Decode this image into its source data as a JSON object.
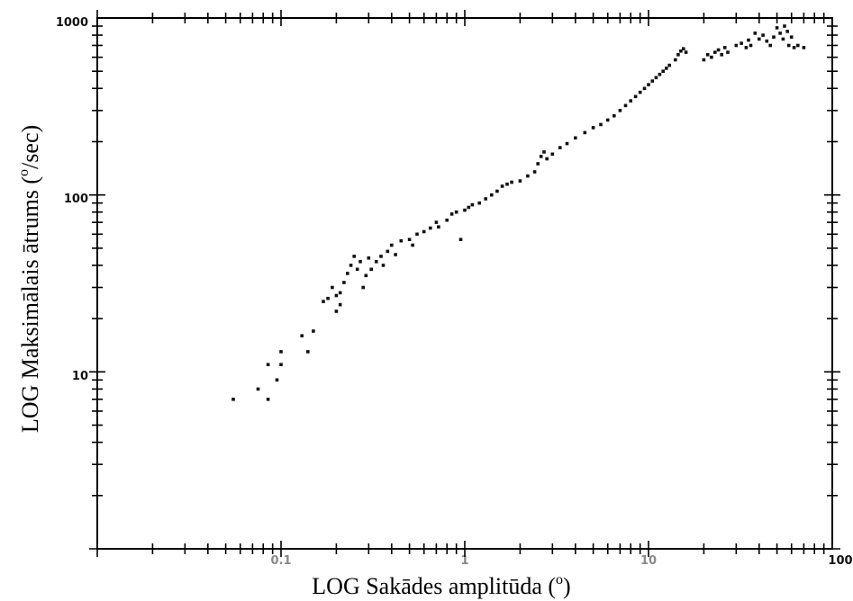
{
  "chart_data": {
    "type": "scatter",
    "title": "",
    "xlabel": "LOG Sakādes amplitūda (",
    "xlabel_sup": "o",
    "xlabel_end": ")",
    "ylabel": "LOG Maksimālais ātrums (",
    "ylabel_sup": "o",
    "ylabel_end": "/sec)",
    "x_scale": "log",
    "y_scale": "log",
    "xlim": [
      0.01,
      100
    ],
    "ylim": [
      1,
      1000
    ],
    "x_tick_labels": [
      "0.1",
      "1",
      "10",
      "100"
    ],
    "y_tick_labels": [
      "1000",
      "100",
      "10"
    ],
    "grid": false,
    "marker_color": "#111111",
    "points": [
      [
        0.055,
        7
      ],
      [
        0.075,
        8
      ],
      [
        0.085,
        11
      ],
      [
        0.085,
        7
      ],
      [
        0.095,
        9
      ],
      [
        0.1,
        11
      ],
      [
        0.1,
        13
      ],
      [
        0.13,
        16
      ],
      [
        0.14,
        13
      ],
      [
        0.15,
        17
      ],
      [
        0.17,
        25
      ],
      [
        0.18,
        26
      ],
      [
        0.19,
        30
      ],
      [
        0.2,
        22
      ],
      [
        0.2,
        27
      ],
      [
        0.21,
        28
      ],
      [
        0.21,
        24
      ],
      [
        0.22,
        32
      ],
      [
        0.23,
        36
      ],
      [
        0.24,
        40
      ],
      [
        0.25,
        45
      ],
      [
        0.26,
        38
      ],
      [
        0.27,
        42
      ],
      [
        0.28,
        30
      ],
      [
        0.29,
        35
      ],
      [
        0.3,
        44
      ],
      [
        0.31,
        38
      ],
      [
        0.33,
        42
      ],
      [
        0.35,
        45
      ],
      [
        0.36,
        40
      ],
      [
        0.38,
        48
      ],
      [
        0.4,
        52
      ],
      [
        0.42,
        46
      ],
      [
        0.45,
        55
      ],
      [
        0.5,
        56
      ],
      [
        0.52,
        52
      ],
      [
        0.55,
        60
      ],
      [
        0.6,
        62
      ],
      [
        0.65,
        65
      ],
      [
        0.7,
        70
      ],
      [
        0.72,
        66
      ],
      [
        0.8,
        72
      ],
      [
        0.85,
        78
      ],
      [
        0.9,
        80
      ],
      [
        0.95,
        56
      ],
      [
        1.0,
        82
      ],
      [
        1.05,
        85
      ],
      [
        1.1,
        88
      ],
      [
        1.2,
        90
      ],
      [
        1.3,
        95
      ],
      [
        1.4,
        100
      ],
      [
        1.5,
        105
      ],
      [
        1.6,
        112
      ],
      [
        1.7,
        115
      ],
      [
        1.8,
        118
      ],
      [
        2.0,
        120
      ],
      [
        2.2,
        128
      ],
      [
        2.4,
        135
      ],
      [
        2.5,
        150
      ],
      [
        2.6,
        165
      ],
      [
        2.7,
        175
      ],
      [
        2.8,
        160
      ],
      [
        3.0,
        170
      ],
      [
        3.3,
        185
      ],
      [
        3.6,
        195
      ],
      [
        4.0,
        210
      ],
      [
        4.5,
        225
      ],
      [
        5.0,
        240
      ],
      [
        5.5,
        250
      ],
      [
        6.0,
        265
      ],
      [
        6.5,
        280
      ],
      [
        7.0,
        300
      ],
      [
        7.5,
        320
      ],
      [
        8.0,
        340
      ],
      [
        8.5,
        360
      ],
      [
        9.0,
        380
      ],
      [
        9.5,
        400
      ],
      [
        10,
        420
      ],
      [
        10.5,
        440
      ],
      [
        11,
        460
      ],
      [
        11.5,
        480
      ],
      [
        12,
        500
      ],
      [
        12.5,
        520
      ],
      [
        13,
        540
      ],
      [
        14,
        580
      ],
      [
        14.5,
        620
      ],
      [
        15,
        650
      ],
      [
        15.5,
        670
      ],
      [
        16,
        640
      ],
      [
        20,
        580
      ],
      [
        21,
        620
      ],
      [
        22,
        600
      ],
      [
        23,
        640
      ],
      [
        24,
        660
      ],
      [
        25,
        620
      ],
      [
        26,
        680
      ],
      [
        27,
        640
      ],
      [
        30,
        700
      ],
      [
        32,
        720
      ],
      [
        34,
        680
      ],
      [
        35,
        750
      ],
      [
        36,
        700
      ],
      [
        38,
        820
      ],
      [
        40,
        760
      ],
      [
        42,
        800
      ],
      [
        44,
        740
      ],
      [
        46,
        700
      ],
      [
        48,
        780
      ],
      [
        50,
        880
      ],
      [
        52,
        820
      ],
      [
        54,
        760
      ],
      [
        55,
        900
      ],
      [
        57,
        840
      ],
      [
        58,
        700
      ],
      [
        60,
        780
      ],
      [
        62,
        680
      ],
      [
        65,
        700
      ],
      [
        70,
        680
      ]
    ]
  }
}
